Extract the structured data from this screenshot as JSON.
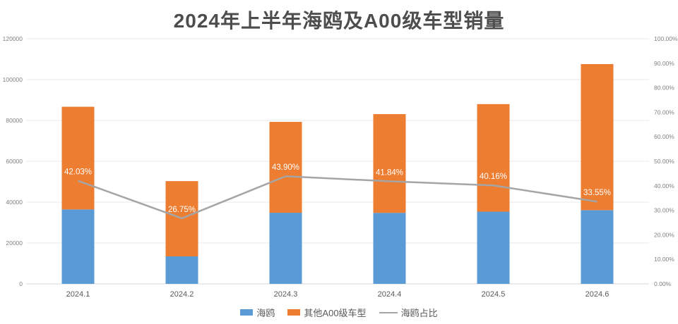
{
  "chart_data": {
    "type": "bar",
    "subtype": "stacked-bar-with-line",
    "title": "2024年上半年海鸥及A00级车型销量",
    "categories": [
      "2024.1",
      "2024.2",
      "2024.3",
      "2024.4",
      "2024.5",
      "2024.6"
    ],
    "series": [
      {
        "name": "海鸥",
        "type": "bar",
        "stack": "total",
        "color": "#5B9BD5",
        "values": [
          36440,
          13455,
          34810,
          34770,
          35340,
          36100
        ]
      },
      {
        "name": "其他A00级车型",
        "type": "bar",
        "stack": "total",
        "color": "#ED7D31",
        "values": [
          50260,
          36845,
          44490,
          48330,
          52660,
          71500
        ]
      },
      {
        "name": "海鸥占比",
        "type": "line",
        "axis": "right",
        "color": "#A5A5A5",
        "values": [
          42.03,
          26.75,
          43.9,
          41.84,
          40.16,
          33.55
        ],
        "labels": [
          "42.03%",
          "26.75%",
          "43.90%",
          "41.84%",
          "40.16%",
          "33.55%"
        ]
      }
    ],
    "left_axis": {
      "min": 0,
      "max": 120000,
      "step": 20000,
      "tick_labels": [
        "0",
        "20000",
        "40000",
        "60000",
        "80000",
        "100000",
        "120000"
      ]
    },
    "right_axis": {
      "min": 0,
      "max": 100,
      "step": 10,
      "decimals": 2,
      "suffix": "%",
      "tick_labels": [
        "0.00%",
        "10.00%",
        "20.00%",
        "30.00%",
        "40.00%",
        "50.00%",
        "60.00%",
        "70.00%",
        "80.00%",
        "90.00%",
        "100.00%"
      ]
    },
    "grid": true,
    "legend_position": "bottom",
    "style": {
      "grid_color": "#e9e9e9",
      "axis_line_color": "#d9d9d9",
      "tick_label_color": "#808080",
      "x_label_color": "#595959",
      "data_label_color": "#ffffff",
      "title_color": "#4d4d4d",
      "background": "#ffffff"
    }
  }
}
